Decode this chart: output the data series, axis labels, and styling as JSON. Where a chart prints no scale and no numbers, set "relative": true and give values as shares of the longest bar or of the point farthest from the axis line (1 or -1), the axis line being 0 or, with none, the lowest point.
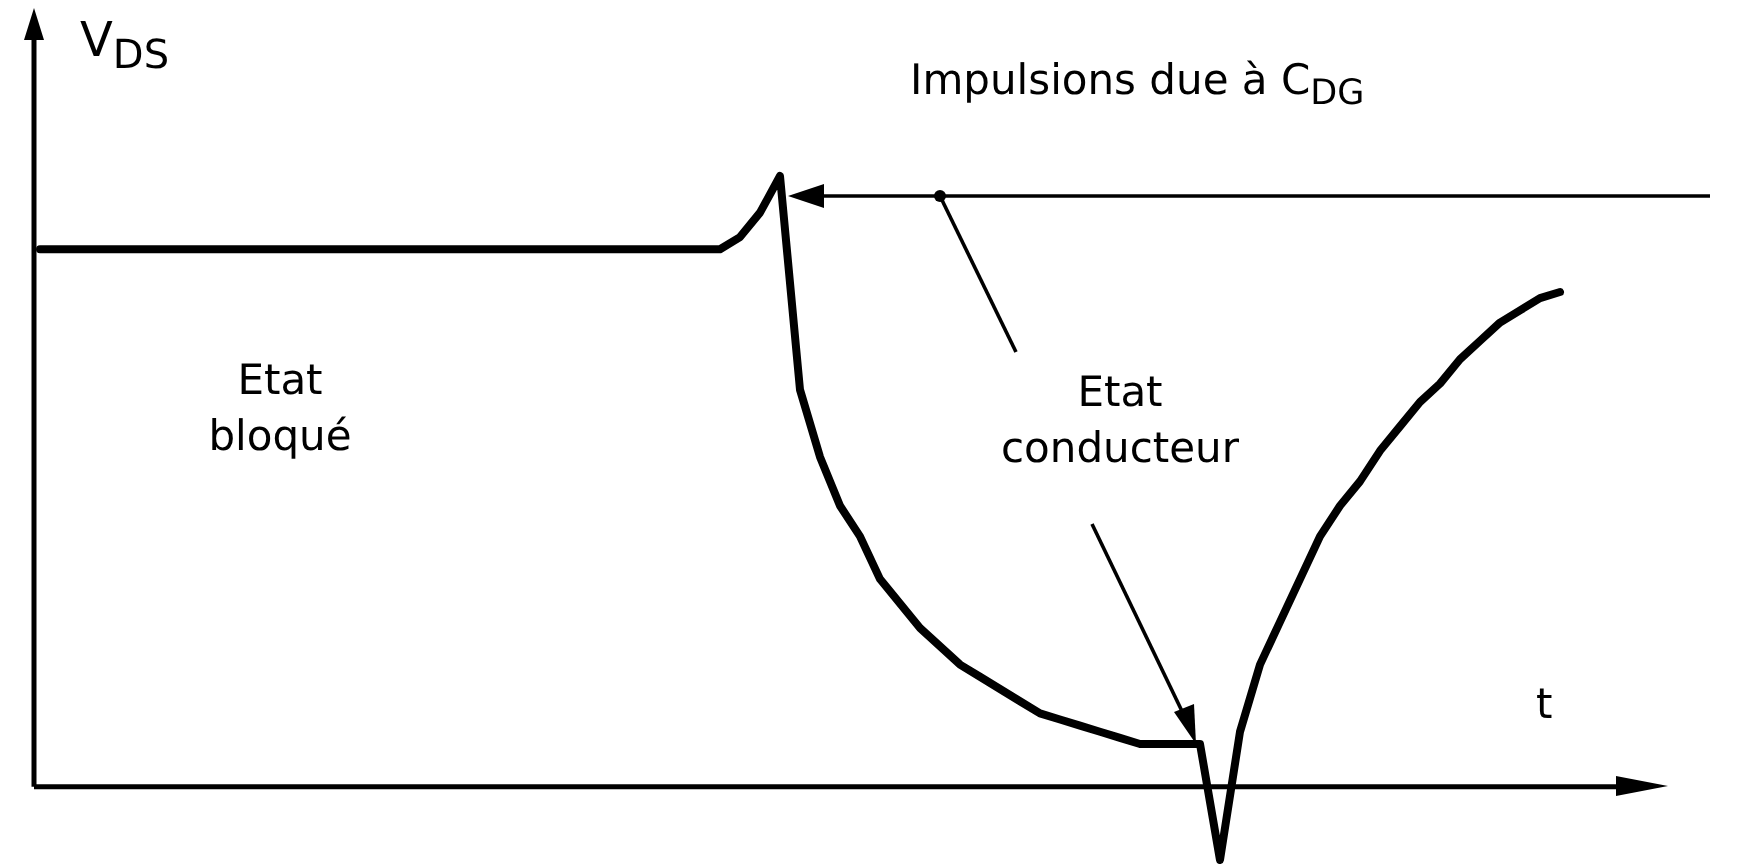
{
  "chart_data": {
    "type": "line",
    "relative": true,
    "xlabel": "t",
    "ylabel": "V$_{DS}$",
    "legend": false,
    "marker": "none",
    "line_style": "solid",
    "categories": [
      null,
      null,
      null,
      null,
      null,
      null,
      null,
      null,
      null,
      null,
      null,
      null,
      null,
      null,
      null,
      null,
      null,
      null,
      null,
      null,
      null,
      null,
      null,
      null,
      null,
      null,
      null,
      null,
      null,
      null,
      null,
      null,
      null,
      null,
      null,
      null,
      null,
      null,
      null,
      null,
      null,
      null,
      null,
      null,
      null,
      null,
      null,
      null,
      null,
      null,
      null,
      null,
      null,
      null,
      null,
      null,
      null,
      null,
      null,
      null,
      null,
      null,
      null,
      null,
      null,
      null,
      null,
      null,
      null,
      null,
      null,
      null,
      null,
      null,
      null,
      null,
      null,
      null,
      null,
      null,
      null,
      null
    ],
    "series": [
      {
        "color": "#000000",
        "values": [
          0.88,
          0.88,
          0.88,
          0.88,
          0.88,
          0.88,
          0.88,
          0.88,
          0.88,
          0.88,
          0.88,
          0.88,
          0.88,
          0.88,
          0.88,
          0.88,
          0.88,
          0.88,
          0.88,
          0.88,
          0.88,
          0.88,
          0.88,
          0.88,
          0.88,
          0.88,
          0.88,
          0.88,
          0.88,
          0.88,
          0.88,
          0.88,
          0.88,
          0.88,
          0.88,
          0.9,
          0.94,
          1.0,
          0.65,
          0.54,
          0.46,
          0.41,
          0.34,
          0.3,
          0.26,
          0.23,
          0.2,
          0.18,
          0.16,
          0.14,
          0.12,
          0.11,
          0.1,
          0.09,
          0.08,
          0.07,
          0.07,
          0.07,
          0.07,
          -0.12,
          0.09,
          0.2,
          0.27,
          0.34,
          0.41,
          0.46,
          0.5,
          0.55,
          0.59,
          0.63,
          0.66,
          0.7,
          0.73,
          0.76,
          0.78,
          0.8,
          0.81,
          null,
          null,
          null,
          null,
          null
        ]
      }
    ],
    "annotations": [
      "Impulsions due à C$_{DG}$",
      "Etat bloqué",
      "Etat conducteur"
    ]
  }
}
